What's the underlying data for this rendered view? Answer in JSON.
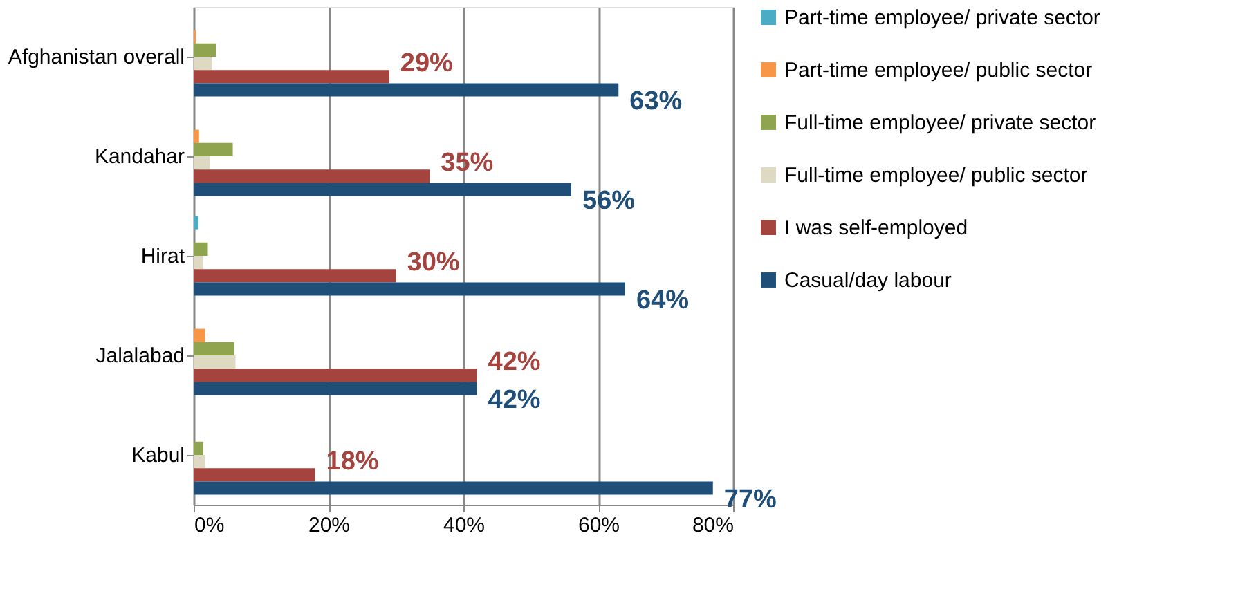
{
  "chart_data": {
    "type": "bar",
    "orientation": "horizontal",
    "categories": [
      "Afghanistan overall",
      "Kandahar",
      "Hirat",
      "Jalalabad",
      "Kabul"
    ],
    "series": [
      {
        "name": "Part-time employee/ private sector",
        "color": "#4bacc6",
        "values": [
          0,
          0,
          0.7,
          0,
          0
        ]
      },
      {
        "name": "Part-time employee/ public sector",
        "color": "#f79646",
        "values": [
          0.3,
          0.8,
          0,
          1.7,
          0
        ]
      },
      {
        "name": "Full-time employee/ private sector",
        "color": "#8ea44e",
        "values": [
          3.3,
          5.8,
          2.1,
          6.0,
          1.4
        ]
      },
      {
        "name": "Full-time employee/ public sector",
        "color": "#ddd9c3",
        "values": [
          2.7,
          2.4,
          1.4,
          6.2,
          1.7
        ]
      },
      {
        "name": "I was self-employed",
        "color": "#a5443f",
        "values": [
          29,
          35,
          30,
          42,
          18
        ],
        "value_labels": [
          "29%",
          "35%",
          "30%",
          "42%",
          "18%"
        ]
      },
      {
        "name": "Casual/day labour",
        "color": "#1f4e79",
        "values": [
          63,
          56,
          64,
          42,
          77
        ],
        "value_labels": [
          "63%",
          "56%",
          "64%",
          "42%",
          "77%"
        ]
      }
    ],
    "xlim": [
      0,
      80
    ],
    "xticks": [
      {
        "value": 0,
        "label": "0%"
      },
      {
        "value": 20,
        "label": "20%"
      },
      {
        "value": 40,
        "label": "40%"
      },
      {
        "value": 60,
        "label": "60%"
      },
      {
        "value": 80,
        "label": "80%"
      }
    ],
    "grid": "x",
    "legend": "right"
  }
}
